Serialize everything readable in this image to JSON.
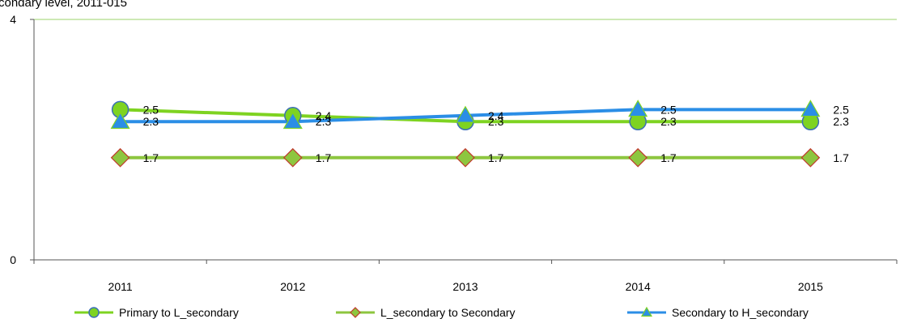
{
  "chart_data": {
    "type": "line",
    "title": "condary level, 2011-015",
    "xlabel": "",
    "ylabel": "",
    "categories": [
      "2011",
      "2012",
      "2013",
      "2014",
      "2015"
    ],
    "ylim": [
      0,
      4
    ],
    "yticks": [
      "0",
      "4"
    ],
    "grid": false,
    "legend_position": "bottom",
    "series": [
      {
        "name": "Primary to L_secondary",
        "values": [
          2.5,
          2.4,
          2.3,
          2.3,
          2.3
        ],
        "labels": [
          "2.5",
          "2.4",
          "2.3",
          "2.3",
          "2.3"
        ],
        "color": "#7ED321",
        "marker": "circle",
        "marker_fill": "#7ED321",
        "marker_stroke": "#3B6FB6"
      },
      {
        "name": "L_secondary to Secondary",
        "values": [
          1.7,
          1.7,
          1.7,
          1.7,
          1.7
        ],
        "labels": [
          "1.7",
          "1.7",
          "1.7",
          "1.7",
          "1.7"
        ],
        "color": "#8DC63F",
        "marker": "diamond",
        "marker_fill": "#8DC63F",
        "marker_stroke": "#C0392B"
      },
      {
        "name": "Secondary  to H_secondary",
        "values": [
          2.3,
          2.3,
          2.4,
          2.5,
          2.5
        ],
        "labels": [
          "2.3",
          "2.3",
          "2.4",
          "2.5",
          "2.5"
        ],
        "color": "#2B8EE6",
        "marker": "triangle",
        "marker_fill": "#2B8EE6",
        "marker_stroke": "#7ED321"
      }
    ],
    "colors": {
      "axis": "#555555",
      "top_border": "#9BD36B"
    }
  }
}
